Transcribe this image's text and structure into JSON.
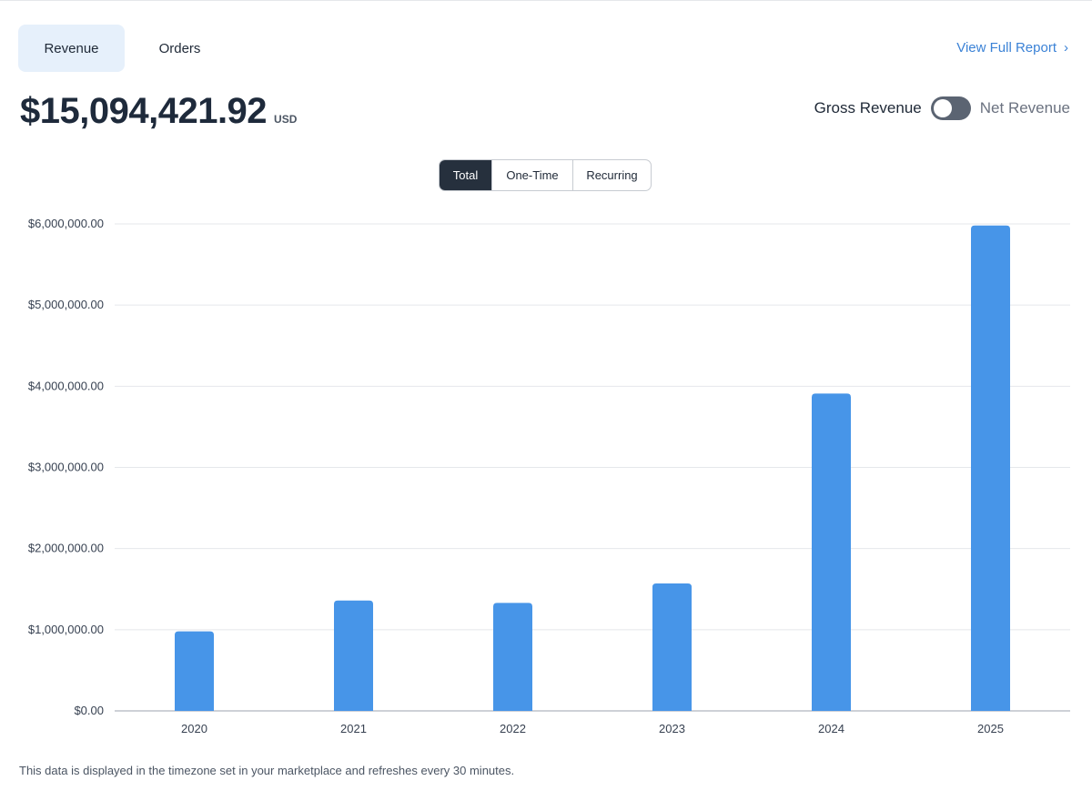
{
  "tabs": [
    {
      "label": "Revenue",
      "active": true
    },
    {
      "label": "Orders",
      "active": false
    }
  ],
  "report_link": {
    "label": "View Full Report",
    "icon": "chevron-right-icon"
  },
  "summary": {
    "amount": "$15,094,421.92",
    "currency": "USD"
  },
  "revenue_toggle": {
    "left_label": "Gross Revenue",
    "right_label": "Net Revenue",
    "on": false
  },
  "segments": [
    {
      "label": "Total",
      "active": true
    },
    {
      "label": "One-Time",
      "active": false
    },
    {
      "label": "Recurring",
      "active": false
    }
  ],
  "colors": {
    "bar": "#4795e8",
    "grid": "#e5e7eb",
    "axis": "#9ca3af"
  },
  "chart_data": {
    "type": "bar",
    "title": "",
    "xlabel": "",
    "ylabel": "",
    "categories": [
      "2020",
      "2021",
      "2022",
      "2023",
      "2024",
      "2025"
    ],
    "values": [
      980000,
      1360000,
      1330000,
      1570000,
      3910000,
      5980000
    ],
    "ylim": [
      0,
      6000000
    ],
    "yticks": [
      0,
      1000000,
      2000000,
      3000000,
      4000000,
      5000000,
      6000000
    ],
    "ytick_labels": [
      "$0.00",
      "$1,000,000.00",
      "$2,000,000.00",
      "$3,000,000.00",
      "$4,000,000.00",
      "$5,000,000.00",
      "$6,000,000.00"
    ],
    "grid": true
  },
  "footnote": "This data is displayed in the timezone set in your marketplace and refreshes every 30 minutes."
}
